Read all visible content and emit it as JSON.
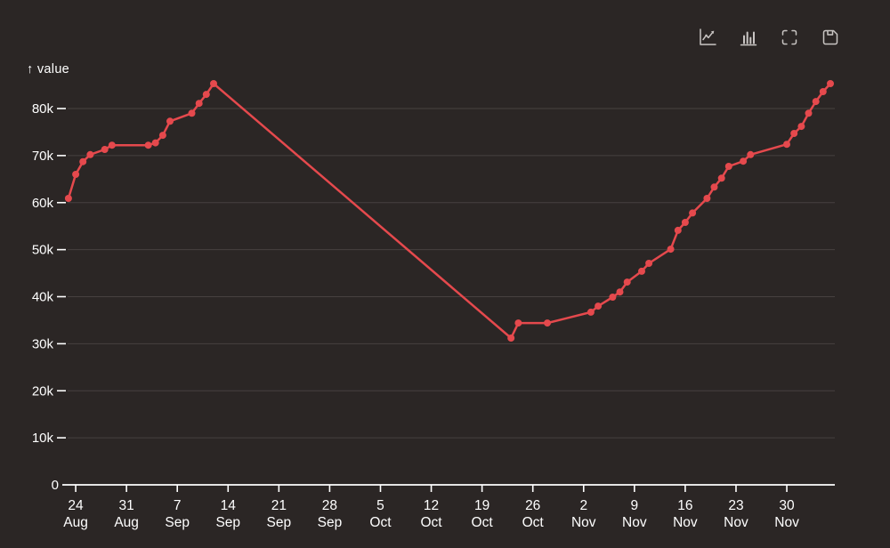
{
  "window": {
    "background": "#2b2625"
  },
  "toolbar": {
    "icon_color": "#c9c5c3",
    "buttons": [
      {
        "name": "toggle-line-chart",
        "icon": "line-chart-icon"
      },
      {
        "name": "toggle-bar-chart",
        "icon": "bar-chart-icon"
      },
      {
        "name": "fullscreen",
        "icon": "fullscreen-icon"
      },
      {
        "name": "save-image",
        "icon": "save-icon"
      }
    ]
  },
  "chart_data": {
    "type": "line",
    "ylabel": "↑ value",
    "line_color": "#e5494d",
    "text_color": "#ffffff",
    "grid_color": "#474140",
    "point_radius": 4,
    "grid": true,
    "legend": "none",
    "ylim": [
      0,
      88000
    ],
    "xlim_dates": [
      "23 Aug",
      "6 Dec"
    ],
    "y_ticks": [
      {
        "value": 0,
        "label": "0"
      },
      {
        "value": 10000,
        "label": "10k"
      },
      {
        "value": 20000,
        "label": "20k"
      },
      {
        "value": 30000,
        "label": "30k"
      },
      {
        "value": 40000,
        "label": "40k"
      },
      {
        "value": 50000,
        "label": "50k"
      },
      {
        "value": 60000,
        "label": "60k"
      },
      {
        "value": 70000,
        "label": "70k"
      },
      {
        "value": 80000,
        "label": "80k"
      }
    ],
    "x_ticks": [
      {
        "day": 1,
        "line1": "24",
        "line2": "Aug"
      },
      {
        "day": 8,
        "line1": "31",
        "line2": "Aug"
      },
      {
        "day": 15,
        "line1": "7",
        "line2": "Sep"
      },
      {
        "day": 22,
        "line1": "14",
        "line2": "Sep"
      },
      {
        "day": 29,
        "line1": "21",
        "line2": "Sep"
      },
      {
        "day": 36,
        "line1": "28",
        "line2": "Sep"
      },
      {
        "day": 43,
        "line1": "5",
        "line2": "Oct"
      },
      {
        "day": 50,
        "line1": "12",
        "line2": "Oct"
      },
      {
        "day": 57,
        "line1": "19",
        "line2": "Oct"
      },
      {
        "day": 64,
        "line1": "26",
        "line2": "Oct"
      },
      {
        "day": 71,
        "line1": "2",
        "line2": "Nov"
      },
      {
        "day": 78,
        "line1": "9",
        "line2": "Nov"
      },
      {
        "day": 85,
        "line1": "16",
        "line2": "Nov"
      },
      {
        "day": 92,
        "line1": "23",
        "line2": "Nov"
      },
      {
        "day": 99,
        "line1": "30",
        "line2": "Nov"
      }
    ],
    "points": [
      {
        "date": "23 Aug",
        "day": 0,
        "value": 60900
      },
      {
        "date": "24 Aug",
        "day": 1,
        "value": 66000
      },
      {
        "date": "25 Aug",
        "day": 2,
        "value": 68700
      },
      {
        "date": "26 Aug",
        "day": 3,
        "value": 70200
      },
      {
        "date": "28 Aug",
        "day": 5,
        "value": 71300
      },
      {
        "date": "29 Aug",
        "day": 6,
        "value": 72200
      },
      {
        "date": "3 Sep",
        "day": 11,
        "value": 72200
      },
      {
        "date": "4 Sep",
        "day": 12,
        "value": 72700
      },
      {
        "date": "5 Sep",
        "day": 13,
        "value": 74300
      },
      {
        "date": "6 Sep",
        "day": 14,
        "value": 77300
      },
      {
        "date": "9 Sep",
        "day": 17,
        "value": 79000
      },
      {
        "date": "10 Sep",
        "day": 18,
        "value": 81100
      },
      {
        "date": "11 Sep",
        "day": 19,
        "value": 83000
      },
      {
        "date": "12 Sep",
        "day": 20,
        "value": 85300
      },
      {
        "date": "23 Oct",
        "day": 61,
        "value": 31200
      },
      {
        "date": "24 Oct",
        "day": 62,
        "value": 34400
      },
      {
        "date": "28 Oct",
        "day": 66,
        "value": 34400
      },
      {
        "date": "3 Nov",
        "day": 72,
        "value": 36700
      },
      {
        "date": "4 Nov",
        "day": 73,
        "value": 38000
      },
      {
        "date": "6 Nov",
        "day": 75,
        "value": 39900
      },
      {
        "date": "7 Nov",
        "day": 76,
        "value": 41000
      },
      {
        "date": "8 Nov",
        "day": 77,
        "value": 43100
      },
      {
        "date": "10 Nov",
        "day": 79,
        "value": 45400
      },
      {
        "date": "11 Nov",
        "day": 80,
        "value": 47100
      },
      {
        "date": "14 Nov",
        "day": 83,
        "value": 50100
      },
      {
        "date": "15 Nov",
        "day": 84,
        "value": 54100
      },
      {
        "date": "16 Nov",
        "day": 85,
        "value": 55800
      },
      {
        "date": "17 Nov",
        "day": 86,
        "value": 57800
      },
      {
        "date": "19 Nov",
        "day": 88,
        "value": 60900
      },
      {
        "date": "20 Nov",
        "day": 89,
        "value": 63300
      },
      {
        "date": "21 Nov",
        "day": 90,
        "value": 65200
      },
      {
        "date": "22 Nov",
        "day": 91,
        "value": 67700
      },
      {
        "date": "24 Nov",
        "day": 93,
        "value": 68800
      },
      {
        "date": "25 Nov",
        "day": 94,
        "value": 70200
      },
      {
        "date": "30 Nov",
        "day": 99,
        "value": 72400
      },
      {
        "date": "1 Dec",
        "day": 100,
        "value": 74700
      },
      {
        "date": "2 Dec",
        "day": 101,
        "value": 76200
      },
      {
        "date": "3 Dec",
        "day": 102,
        "value": 79000
      },
      {
        "date": "4 Dec",
        "day": 103,
        "value": 81500
      },
      {
        "date": "5 Dec",
        "day": 104,
        "value": 83600
      },
      {
        "date": "6 Dec",
        "day": 105,
        "value": 85300
      }
    ]
  }
}
